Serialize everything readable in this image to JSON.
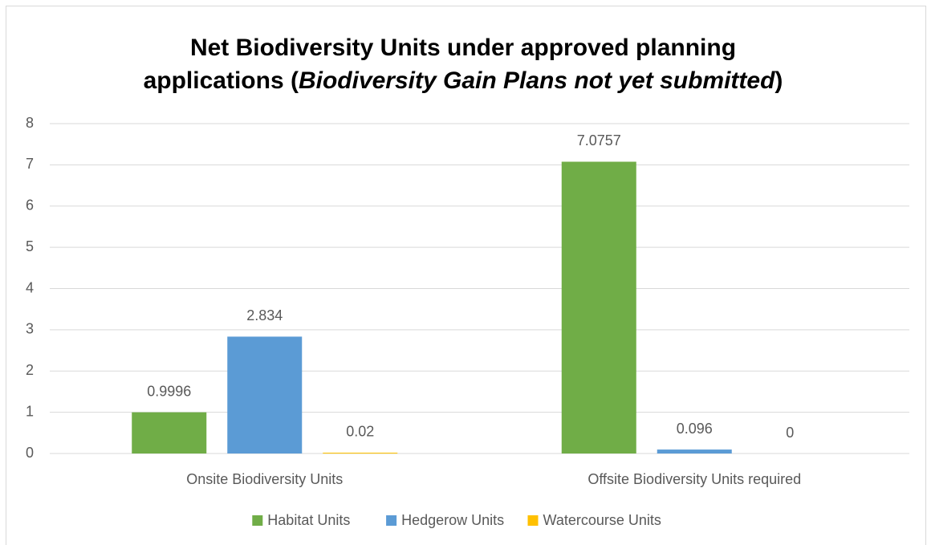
{
  "chart_data": {
    "type": "bar",
    "title": [
      "Net Biodiversity Units under approved planning",
      "applications (",
      "Biodiversity Gain Plans not yet submitted",
      ")"
    ],
    "categories": [
      "Onsite Biodiversity Units",
      "Offsite Biodiversity Units required"
    ],
    "series": [
      {
        "name": "Habitat Units",
        "color": "#70ad47",
        "values": [
          0.9996,
          7.0757
        ]
      },
      {
        "name": "Hedgerow Units",
        "color": "#5b9bd5",
        "values": [
          2.834,
          0.096
        ]
      },
      {
        "name": "Watercourse Units",
        "color": "#ffc000",
        "values": [
          0.02,
          0
        ]
      }
    ],
    "ylim": [
      0,
      8
    ],
    "yticks": [
      0,
      1,
      2,
      3,
      4,
      5,
      6,
      7,
      8
    ],
    "grid": true,
    "legend": "bottom"
  }
}
